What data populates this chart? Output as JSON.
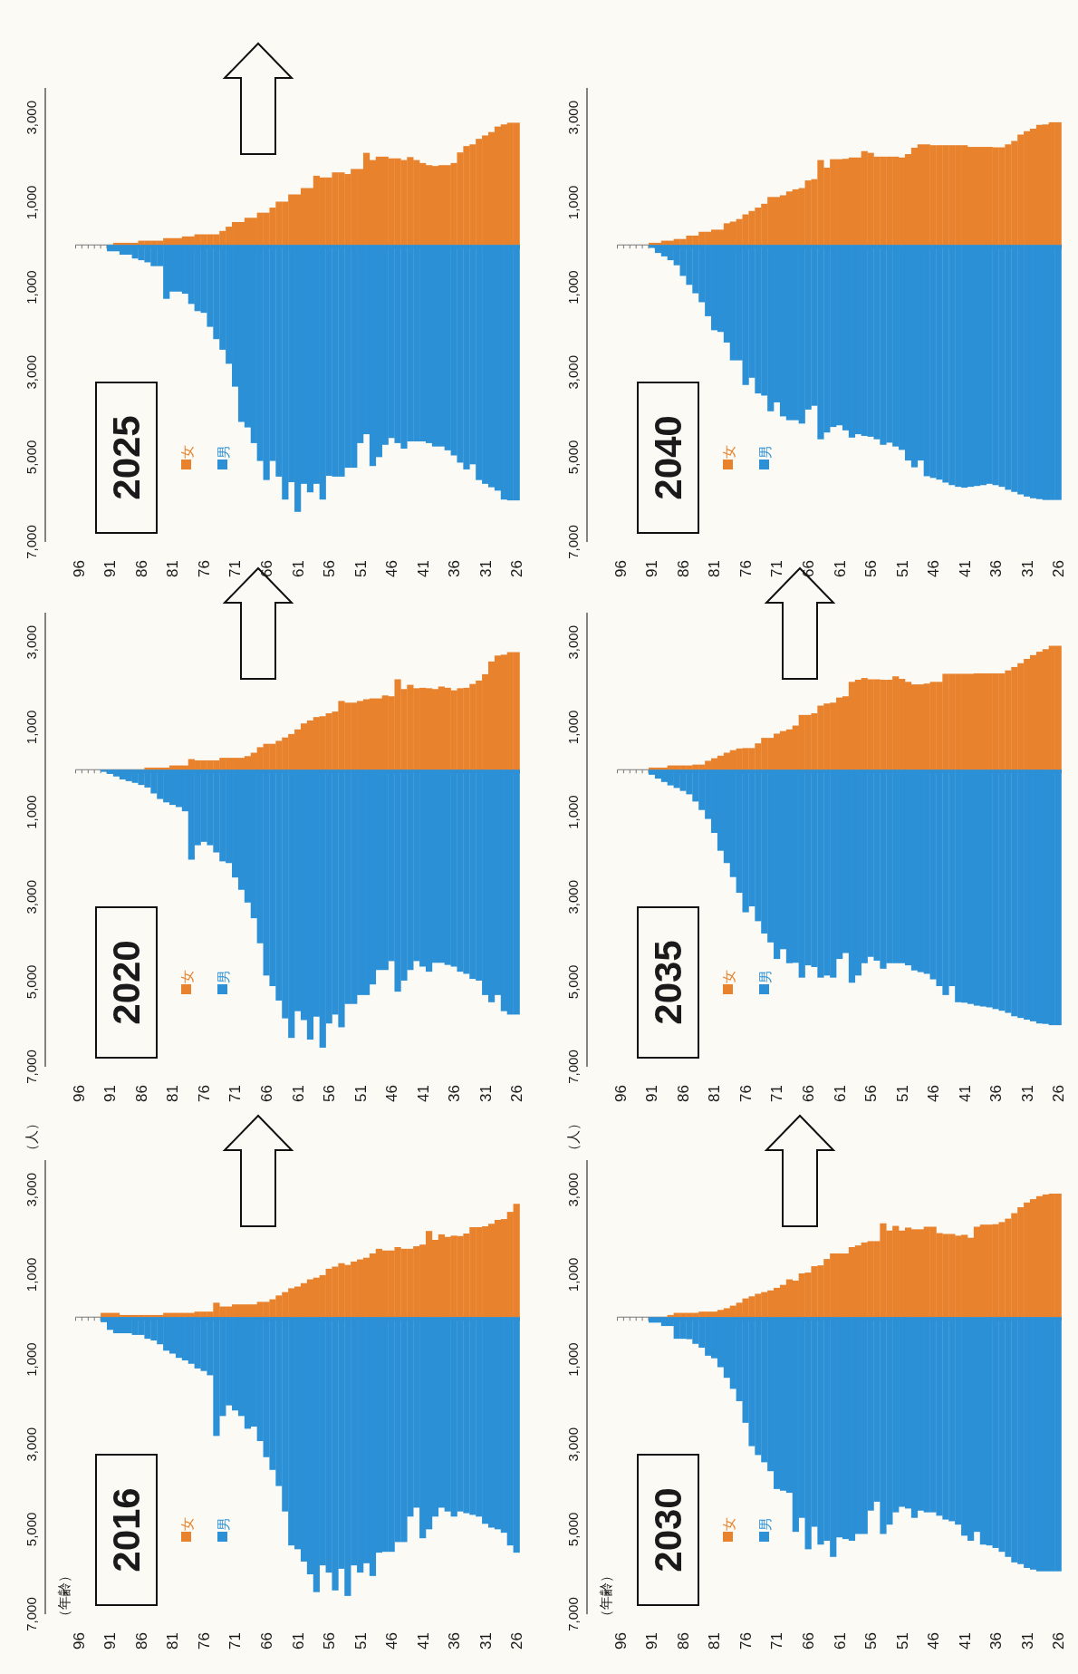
{
  "chart_data": [
    {
      "type": "bar",
      "stacked": true,
      "title": "2016",
      "annotations": [
        "（年齢）"
      ],
      "ylabel": "（人）",
      "legend": "bottom left",
      "ylim": [
        -7000,
        3700
      ],
      "yticks": [
        {
          "value": -7000,
          "label": "7,000"
        },
        {
          "value": -5000,
          "label": "5,000"
        },
        {
          "value": -3000,
          "label": "3,000"
        },
        {
          "value": -1000,
          "label": "1,000"
        },
        {
          "value": 1000,
          "label": "1,000"
        },
        {
          "value": 3000,
          "label": "3,000"
        }
      ],
      "categories": [
        "96",
        null,
        null,
        null,
        null,
        "91",
        null,
        null,
        null,
        null,
        "86",
        null,
        null,
        null,
        null,
        "81",
        null,
        null,
        null,
        null,
        "76",
        null,
        null,
        null,
        null,
        "71",
        null,
        null,
        null,
        null,
        "66",
        null,
        null,
        null,
        null,
        "61",
        null,
        null,
        null,
        null,
        "56",
        null,
        null,
        null,
        null,
        "51",
        null,
        null,
        null,
        null,
        "46",
        null,
        null,
        null,
        null,
        "41",
        null,
        null,
        null,
        null,
        "36",
        null,
        null,
        null,
        null,
        "31",
        null,
        null,
        null,
        null,
        "26"
      ],
      "series": [
        {
          "name": "女",
          "color": "#e8822c",
          "values": [
            0,
            0,
            0,
            0,
            100,
            100,
            100,
            50,
            50,
            50,
            50,
            50,
            50,
            50,
            100,
            100,
            100,
            100,
            100,
            130,
            130,
            130,
            340,
            250,
            250,
            300,
            300,
            300,
            300,
            360,
            360,
            420,
            510,
            590,
            680,
            720,
            800,
            890,
            930,
            990,
            1140,
            1190,
            1270,
            1230,
            1310,
            1360,
            1400,
            1500,
            1610,
            1570,
            1570,
            1650,
            1610,
            1610,
            1670,
            1710,
            2030,
            1820,
            1950,
            1890,
            1920,
            1910,
            1970,
            2120,
            2120,
            2140,
            2200,
            2290,
            2310,
            2480,
            2670
          ]
        },
        {
          "name": "男",
          "color": "#2b90d6",
          "values": [
            0,
            0,
            0,
            0,
            -120,
            -300,
            -380,
            -380,
            -380,
            -420,
            -420,
            -510,
            -550,
            -640,
            -790,
            -860,
            -960,
            -1020,
            -1100,
            -1210,
            -1270,
            -1370,
            -2800,
            -2330,
            -2080,
            -2200,
            -2330,
            -2630,
            -2580,
            -2920,
            -3300,
            -3600,
            -3980,
            -4580,
            -5380,
            -5470,
            -5760,
            -6060,
            -6480,
            -5850,
            -6020,
            -6440,
            -5930,
            -6570,
            -5850,
            -6020,
            -5800,
            -6100,
            -5550,
            -5530,
            -5530,
            -5300,
            -5300,
            -4700,
            -4490,
            -5210,
            -5000,
            -4700,
            -4490,
            -4580,
            -4700,
            -4580,
            -4620,
            -4660,
            -4700,
            -4870,
            -4960,
            -5000,
            -5080,
            -5380,
            -5550
          ]
        }
      ]
    },
    {
      "type": "bar",
      "stacked": true,
      "title": "2020",
      "legend": "bottom left",
      "ylim": [
        -7000,
        3700
      ],
      "yticks": [
        {
          "value": -7000,
          "label": "7,000"
        },
        {
          "value": -5000,
          "label": "5,000"
        },
        {
          "value": -3000,
          "label": "3,000"
        },
        {
          "value": -1000,
          "label": "1,000"
        },
        {
          "value": 1000,
          "label": "1,000"
        },
        {
          "value": 3000,
          "label": "3,000"
        }
      ],
      "categories": [
        "96",
        null,
        null,
        null,
        null,
        "91",
        null,
        null,
        null,
        null,
        "86",
        null,
        null,
        null,
        null,
        "81",
        null,
        null,
        null,
        null,
        "76",
        null,
        null,
        null,
        null,
        "71",
        null,
        null,
        null,
        null,
        "66",
        null,
        null,
        null,
        null,
        "61",
        null,
        null,
        null,
        null,
        "56",
        null,
        null,
        null,
        null,
        "51",
        null,
        null,
        null,
        null,
        "46",
        null,
        null,
        null,
        null,
        "41",
        null,
        null,
        null,
        null,
        "36",
        null,
        null,
        null,
        null,
        "31",
        null,
        null,
        null,
        null,
        "26"
      ],
      "series": [
        {
          "name": "女",
          "color": "#e8822c",
          "values": [
            0,
            0,
            0,
            0,
            0,
            0,
            0,
            0,
            0,
            0,
            0,
            50,
            50,
            50,
            50,
            100,
            100,
            100,
            250,
            220,
            220,
            220,
            220,
            280,
            280,
            280,
            280,
            320,
            400,
            530,
            610,
            610,
            680,
            760,
            840,
            950,
            1090,
            1160,
            1240,
            1260,
            1330,
            1370,
            1620,
            1580,
            1580,
            1620,
            1660,
            1680,
            1680,
            1750,
            1730,
            2130,
            1900,
            2000,
            1920,
            1930,
            1920,
            1900,
            1960,
            1930,
            1870,
            1920,
            1930,
            2020,
            2100,
            2250,
            2550,
            2690,
            2710,
            2770,
            2770
          ]
        },
        {
          "name": "男",
          "color": "#2b90d6",
          "values": [
            0,
            0,
            0,
            0,
            -50,
            -100,
            -160,
            -230,
            -270,
            -310,
            -360,
            -420,
            -560,
            -690,
            -770,
            -830,
            -880,
            -980,
            -2120,
            -1780,
            -1700,
            -1780,
            -1950,
            -2160,
            -2200,
            -2540,
            -2830,
            -3130,
            -3500,
            -4090,
            -4850,
            -5100,
            -5440,
            -5860,
            -6320,
            -5690,
            -5900,
            -6360,
            -5820,
            -6550,
            -5980,
            -5770,
            -6070,
            -5520,
            -5520,
            -5310,
            -5310,
            -5060,
            -4720,
            -4720,
            -4510,
            -5230,
            -4970,
            -4720,
            -4510,
            -4640,
            -4760,
            -4550,
            -4550,
            -4600,
            -4640,
            -4760,
            -4810,
            -4930,
            -4970,
            -5310,
            -5480,
            -5310,
            -5690,
            -5770,
            -5770
          ]
        }
      ]
    },
    {
      "type": "bar",
      "stacked": true,
      "title": "2025",
      "legend": "bottom left",
      "ylim": [
        -7000,
        3700
      ],
      "yticks": [
        {
          "value": -7000,
          "label": "7,000"
        },
        {
          "value": -5000,
          "label": "5,000"
        },
        {
          "value": -3000,
          "label": "3,000"
        },
        {
          "value": -1000,
          "label": "1,000"
        },
        {
          "value": 1000,
          "label": "1,000"
        },
        {
          "value": 3000,
          "label": "3,000"
        }
      ],
      "categories": [
        "96",
        null,
        null,
        null,
        null,
        "91",
        null,
        null,
        null,
        null,
        "86",
        null,
        null,
        null,
        null,
        "81",
        null,
        null,
        null,
        null,
        "76",
        null,
        null,
        null,
        null,
        "71",
        null,
        null,
        null,
        null,
        "66",
        null,
        null,
        null,
        null,
        "61",
        null,
        null,
        null,
        null,
        "56",
        null,
        null,
        null,
        null,
        "51",
        null,
        null,
        null,
        null,
        "46",
        null,
        null,
        null,
        null,
        "41",
        null,
        null,
        null,
        null,
        "36",
        null,
        null,
        null,
        null,
        "31",
        null,
        null,
        null,
        null,
        "26"
      ],
      "series": [
        {
          "name": "女",
          "color": "#e8822c",
          "values": [
            0,
            0,
            0,
            0,
            0,
            0,
            50,
            50,
            50,
            50,
            100,
            100,
            100,
            100,
            160,
            160,
            160,
            200,
            200,
            250,
            250,
            250,
            250,
            330,
            430,
            540,
            540,
            640,
            640,
            760,
            760,
            880,
            1020,
            1020,
            1190,
            1190,
            1340,
            1340,
            1630,
            1590,
            1590,
            1710,
            1710,
            1670,
            1790,
            1790,
            2170,
            2000,
            2080,
            2080,
            2040,
            2040,
            2000,
            2070,
            2000,
            1930,
            1880,
            1860,
            1880,
            1880,
            1930,
            2180,
            2330,
            2370,
            2500,
            2580,
            2660,
            2790,
            2840,
            2880,
            2880
          ]
        },
        {
          "name": "男",
          "color": "#2b90d6",
          "values": [
            0,
            0,
            0,
            0,
            0,
            -150,
            -150,
            -230,
            -230,
            -320,
            -360,
            -410,
            -500,
            -500,
            -1270,
            -1100,
            -1100,
            -1150,
            -1390,
            -1560,
            -1600,
            -1930,
            -2220,
            -2470,
            -2800,
            -3340,
            -4170,
            -4300,
            -4670,
            -5090,
            -5540,
            -5090,
            -5460,
            -6000,
            -5590,
            -6290,
            -5630,
            -5830,
            -5630,
            -6000,
            -5440,
            -5460,
            -5460,
            -5250,
            -5250,
            -4670,
            -4460,
            -5210,
            -5000,
            -4710,
            -4550,
            -4670,
            -4800,
            -4630,
            -4630,
            -4630,
            -4670,
            -4750,
            -4750,
            -4840,
            -4960,
            -5130,
            -5290,
            -5170,
            -5540,
            -5630,
            -5710,
            -5790,
            -6000,
            -6020,
            -6020
          ]
        }
      ]
    },
    {
      "type": "bar",
      "stacked": true,
      "title": "2030",
      "annotations": [
        "（年齢）"
      ],
      "ylabel": "（人）",
      "legend": "bottom left",
      "ylim": [
        -7000,
        3700
      ],
      "yticks": [
        {
          "value": -7000,
          "label": "7,000"
        },
        {
          "value": -5000,
          "label": "5,000"
        },
        {
          "value": -3000,
          "label": "3,000"
        },
        {
          "value": -1000,
          "label": "1,000"
        },
        {
          "value": 1000,
          "label": "1,000"
        },
        {
          "value": 3000,
          "label": "3,000"
        }
      ],
      "categories": [
        "96",
        null,
        null,
        null,
        null,
        "91",
        null,
        null,
        null,
        null,
        "86",
        null,
        null,
        null,
        null,
        "81",
        null,
        null,
        null,
        null,
        "76",
        null,
        null,
        null,
        null,
        "71",
        null,
        null,
        null,
        null,
        "66",
        null,
        null,
        null,
        null,
        "61",
        null,
        null,
        null,
        null,
        "56",
        null,
        null,
        null,
        null,
        "51",
        null,
        null,
        null,
        null,
        "46",
        null,
        null,
        null,
        null,
        "41",
        null,
        null,
        null,
        null,
        "36",
        null,
        null,
        null,
        null,
        "31",
        null,
        null,
        null,
        null,
        "26"
      ],
      "series": [
        {
          "name": "女",
          "color": "#e8822c",
          "values": [
            0,
            0,
            0,
            0,
            0,
            0,
            0,
            0,
            50,
            100,
            100,
            100,
            100,
            130,
            130,
            130,
            170,
            210,
            270,
            340,
            440,
            490,
            550,
            590,
            630,
            690,
            760,
            890,
            860,
            1030,
            1050,
            1200,
            1220,
            1370,
            1500,
            1500,
            1500,
            1650,
            1690,
            1760,
            1790,
            1790,
            2210,
            2040,
            2150,
            2040,
            2110,
            2070,
            2070,
            2130,
            2130,
            1980,
            1960,
            1960,
            1920,
            1940,
            1870,
            2130,
            2180,
            2180,
            2190,
            2240,
            2320,
            2450,
            2590,
            2700,
            2780,
            2850,
            2890,
            2910,
            2910
          ]
        },
        {
          "name": "男",
          "color": "#2b90d6",
          "values": [
            0,
            0,
            0,
            0,
            0,
            -130,
            -130,
            -210,
            -210,
            -510,
            -510,
            -520,
            -630,
            -720,
            -910,
            -970,
            -1180,
            -1430,
            -1690,
            -1980,
            -2490,
            -3040,
            -3250,
            -3420,
            -3630,
            -4050,
            -4090,
            -4140,
            -5060,
            -4730,
            -5470,
            -4940,
            -5360,
            -5270,
            -5650,
            -5190,
            -5230,
            -5270,
            -5110,
            -5110,
            -4560,
            -4350,
            -5110,
            -4890,
            -4600,
            -4470,
            -4510,
            -4730,
            -4560,
            -4600,
            -4600,
            -4680,
            -4770,
            -4810,
            -4890,
            -5150,
            -5270,
            -5060,
            -5360,
            -5380,
            -5440,
            -5530,
            -5650,
            -5780,
            -5820,
            -5910,
            -5950,
            -5990,
            -5990,
            -5990,
            -5990
          ]
        }
      ]
    },
    {
      "type": "bar",
      "stacked": true,
      "title": "2035",
      "legend": "bottom left",
      "ylim": [
        -7000,
        3700
      ],
      "yticks": [
        {
          "value": -7000,
          "label": "7,000"
        },
        {
          "value": -5000,
          "label": "5,000"
        },
        {
          "value": -3000,
          "label": "3,000"
        },
        {
          "value": -1000,
          "label": "1,000"
        },
        {
          "value": 1000,
          "label": "1,000"
        },
        {
          "value": 3000,
          "label": "3,000"
        }
      ],
      "categories": [
        "96",
        null,
        null,
        null,
        null,
        "91",
        null,
        null,
        null,
        null,
        "86",
        null,
        null,
        null,
        null,
        "81",
        null,
        null,
        null,
        null,
        "76",
        null,
        null,
        null,
        null,
        "71",
        null,
        null,
        null,
        null,
        "66",
        null,
        null,
        null,
        null,
        "61",
        null,
        null,
        null,
        null,
        "56",
        null,
        null,
        null,
        null,
        "51",
        null,
        null,
        null,
        null,
        "46",
        null,
        null,
        null,
        null,
        "41",
        null,
        null,
        null,
        null,
        "36",
        null,
        null,
        null,
        null,
        "31",
        null,
        null,
        null,
        null,
        "26"
      ],
      "series": [
        {
          "name": "女",
          "color": "#e8822c",
          "values": [
            0,
            0,
            0,
            0,
            0,
            50,
            50,
            50,
            100,
            100,
            100,
            100,
            120,
            120,
            210,
            270,
            330,
            400,
            460,
            500,
            510,
            510,
            620,
            750,
            750,
            850,
            910,
            950,
            1040,
            1290,
            1290,
            1330,
            1510,
            1560,
            1580,
            1700,
            1730,
            2070,
            2120,
            2160,
            2130,
            2130,
            2120,
            2120,
            2200,
            2140,
            2070,
            2010,
            2010,
            2030,
            2070,
            2070,
            2260,
            2260,
            2260,
            2260,
            2260,
            2270,
            2270,
            2270,
            2270,
            2270,
            2340,
            2420,
            2510,
            2610,
            2700,
            2780,
            2840,
            2920,
            2920
          ]
        },
        {
          "name": "男",
          "color": "#2b90d6",
          "values": [
            0,
            0,
            0,
            0,
            0,
            -120,
            -210,
            -290,
            -370,
            -430,
            -500,
            -580,
            -750,
            -950,
            -1160,
            -1490,
            -1910,
            -2200,
            -2530,
            -2900,
            -3360,
            -3220,
            -3570,
            -3860,
            -4070,
            -4460,
            -4230,
            -4560,
            -4550,
            -4900,
            -4610,
            -4650,
            -4900,
            -4850,
            -4900,
            -4460,
            -4320,
            -5020,
            -4850,
            -4560,
            -4410,
            -4500,
            -4690,
            -4560,
            -4560,
            -4560,
            -4610,
            -4730,
            -4770,
            -4810,
            -4940,
            -5100,
            -5310,
            -5100,
            -5480,
            -5490,
            -5520,
            -5560,
            -5580,
            -5600,
            -5640,
            -5680,
            -5730,
            -5810,
            -5850,
            -5890,
            -5930,
            -5980,
            -5990,
            -6020,
            -6020
          ]
        }
      ]
    },
    {
      "type": "bar",
      "stacked": true,
      "title": "2040",
      "legend": "bottom left",
      "ylim": [
        -7000,
        3700
      ],
      "yticks": [
        {
          "value": -7000,
          "label": "7,000"
        },
        {
          "value": -5000,
          "label": "5,000"
        },
        {
          "value": -3000,
          "label": "3,000"
        },
        {
          "value": -1000,
          "label": "1,000"
        },
        {
          "value": 1000,
          "label": "1,000"
        },
        {
          "value": 3000,
          "label": "3,000"
        }
      ],
      "categories": [
        "96",
        null,
        null,
        null,
        null,
        "91",
        null,
        null,
        null,
        null,
        "86",
        null,
        null,
        null,
        null,
        "81",
        null,
        null,
        null,
        null,
        "76",
        null,
        null,
        null,
        null,
        "71",
        null,
        null,
        null,
        null,
        "66",
        null,
        null,
        null,
        null,
        "61",
        null,
        null,
        null,
        null,
        "56",
        null,
        null,
        null,
        null,
        "51",
        null,
        null,
        null,
        null,
        "46",
        null,
        null,
        null,
        null,
        "41",
        null,
        null,
        null,
        null,
        "36",
        null,
        null,
        null,
        null,
        "31",
        null,
        null,
        null,
        null,
        "26"
      ],
      "series": [
        {
          "name": "女",
          "color": "#e8822c",
          "values": [
            0,
            0,
            0,
            0,
            0,
            50,
            50,
            100,
            100,
            140,
            140,
            220,
            220,
            310,
            310,
            360,
            360,
            510,
            550,
            610,
            720,
            800,
            880,
            970,
            1130,
            1130,
            1170,
            1260,
            1310,
            1340,
            1520,
            1550,
            2000,
            1820,
            2020,
            2020,
            2030,
            2060,
            2060,
            2210,
            2170,
            2080,
            2080,
            2080,
            2080,
            2060,
            2140,
            2290,
            2370,
            2370,
            2350,
            2350,
            2350,
            2350,
            2350,
            2350,
            2310,
            2310,
            2310,
            2310,
            2300,
            2300,
            2370,
            2450,
            2600,
            2680,
            2740,
            2830,
            2840,
            2890,
            2890
          ]
        },
        {
          "name": "男",
          "color": "#2b90d6",
          "values": [
            0,
            0,
            0,
            0,
            0,
            -70,
            -190,
            -270,
            -360,
            -480,
            -730,
            -940,
            -1140,
            -1350,
            -1680,
            -2010,
            -2050,
            -2300,
            -2720,
            -2720,
            -3300,
            -3130,
            -3500,
            -3550,
            -3920,
            -3710,
            -4040,
            -4130,
            -4130,
            -4210,
            -3880,
            -3790,
            -4580,
            -4420,
            -4290,
            -4250,
            -4370,
            -4540,
            -4460,
            -4500,
            -4520,
            -4580,
            -4710,
            -4660,
            -4750,
            -4830,
            -5080,
            -5240,
            -5080,
            -5450,
            -5490,
            -5530,
            -5600,
            -5660,
            -5700,
            -5720,
            -5700,
            -5680,
            -5660,
            -5630,
            -5660,
            -5700,
            -5770,
            -5820,
            -5880,
            -5930,
            -5970,
            -5990,
            -6010,
            -6010,
            -6010
          ]
        }
      ]
    }
  ]
}
